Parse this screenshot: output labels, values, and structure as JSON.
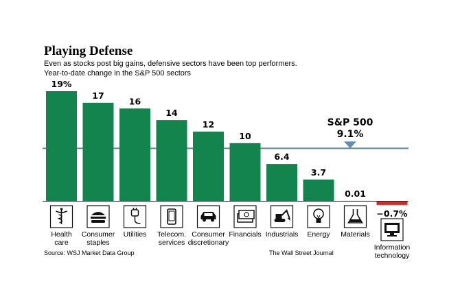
{
  "chart_data": {
    "type": "bar",
    "title": "Playing Defense",
    "subtitle": [
      "Even as stocks post big gains, defensive sectors have been top performers.",
      "Year-to-date change in the S&P 500 sectors"
    ],
    "categories": [
      [
        "Health",
        "care"
      ],
      [
        "Consumer",
        "staples"
      ],
      [
        "Utilities"
      ],
      [
        "Telecom.",
        "services"
      ],
      [
        "Consumer",
        "discretionary"
      ],
      [
        "Financials"
      ],
      [
        "Industrials"
      ],
      [
        "Energy"
      ],
      [
        "Materials"
      ],
      [
        "Information",
        "technology"
      ]
    ],
    "values": [
      19,
      17,
      16,
      14,
      12,
      10,
      6.4,
      3.7,
      0.01,
      -0.7
    ],
    "value_labels": [
      "19%",
      "17",
      "16",
      "14",
      "12",
      "10",
      "6.4",
      "3.7",
      "0.01",
      "−0.7%"
    ],
    "icons": [
      "caduceus-icon",
      "burger-icon",
      "plug-icon",
      "phone-icon",
      "car-icon",
      "cash-icon",
      "excavator-icon",
      "lightbulb-icon",
      "flask-icon",
      "computer-icon"
    ],
    "reference_line": {
      "label": "S&P 500",
      "value": 9.1,
      "value_label": "9.1%"
    },
    "ylim": [
      -0.7,
      19
    ],
    "xlabel": "",
    "ylabel": "",
    "colors": {
      "positive": "#13844d",
      "negative": "#c8302c",
      "reference": "#5b86a4",
      "marker": "#5f8eb1"
    }
  },
  "footer": {
    "source": "Source: WSJ Market Data Group",
    "credit": "The Wall Street Journal"
  }
}
